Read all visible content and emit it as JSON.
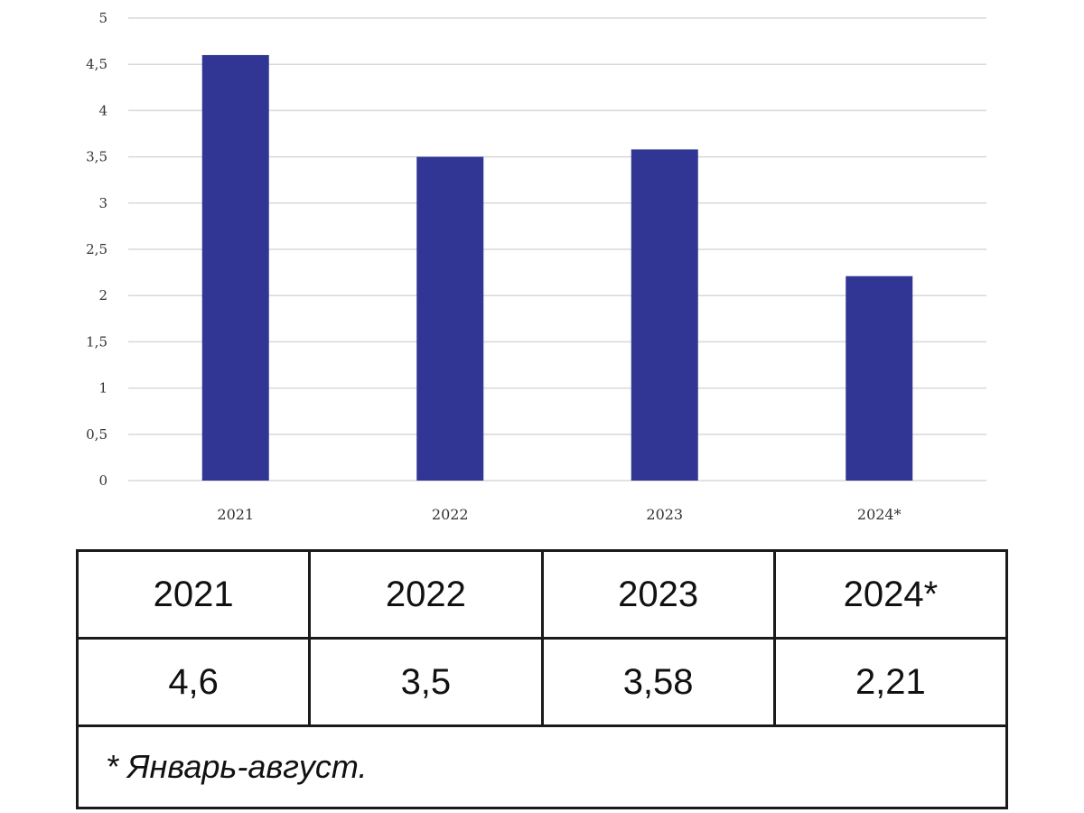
{
  "chart_data": {
    "type": "bar",
    "categories": [
      "2021",
      "2022",
      "2023",
      "2024*"
    ],
    "values": [
      4.6,
      3.5,
      3.58,
      2.21
    ],
    "ylim": [
      0,
      5
    ],
    "yticks": [
      "0",
      "0,5",
      "1",
      "1,5",
      "2",
      "2,5",
      "3",
      "3,5",
      "4",
      "4,5",
      "5"
    ],
    "grid": true,
    "bar_color": "#313694",
    "grid_color": "#d9d9d9"
  },
  "table": {
    "headers": [
      "2021",
      "2022",
      "2023",
      "2024*"
    ],
    "values": [
      "4,6",
      "3,5",
      "3,58",
      "2,21"
    ],
    "footnote": "* Январь-август."
  }
}
